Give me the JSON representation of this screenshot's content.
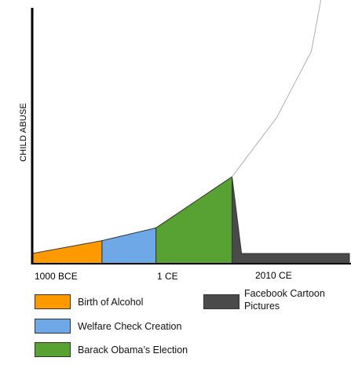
{
  "chart_data": {
    "type": "area",
    "ylabel": "CHILD ABUSE",
    "xlabel": "",
    "x_ticks": [
      "1000 BCE",
      "1 CE",
      "2010 CE"
    ],
    "series": [
      {
        "name": "Birth of Alcohol",
        "color": "#ff9900",
        "points": [
          [
            0,
            4
          ],
          [
            22,
            9
          ]
        ]
      },
      {
        "name": "Welfare Check Creation",
        "color": "#6fa8e6",
        "points": [
          [
            22,
            9
          ],
          [
            39,
            14
          ]
        ]
      },
      {
        "name": "Barack Obama’s Election",
        "color": "#57a233",
        "points": [
          [
            39,
            14
          ],
          [
            63,
            34
          ]
        ]
      },
      {
        "name": "Facebook Cartoon Pictures",
        "color": "#4a4a4a",
        "points": [
          [
            63,
            34
          ],
          [
            66,
            4
          ],
          [
            100,
            4
          ]
        ]
      }
    ],
    "trend_line": {
      "color": "#b0b0b0",
      "points": [
        [
          63,
          34
        ],
        [
          77,
          57
        ],
        [
          88,
          83
        ],
        [
          91,
          103
        ]
      ]
    },
    "xlim": [
      0,
      100
    ],
    "ylim": [
      0,
      100
    ],
    "legend": [
      {
        "label": "Birth of Alcohol",
        "color": "#ff9900"
      },
      {
        "label": "Welfare Check Creation",
        "color": "#6fa8e6"
      },
      {
        "label": "Barack Obama’s Election",
        "color": "#57a233"
      },
      {
        "label": "Facebook Cartoon Pictures",
        "color": "#4a4a4a"
      }
    ]
  }
}
